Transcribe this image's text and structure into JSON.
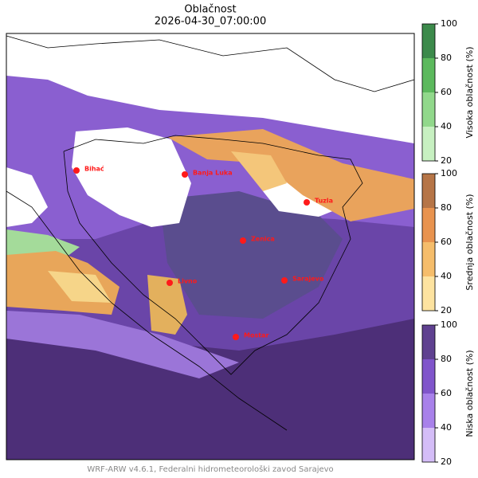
{
  "header": {
    "title": "Oblačnost",
    "subtitle": "2026-04-30_07:00:00"
  },
  "cities": [
    {
      "name": "Bihać"
    },
    {
      "name": "Banja Luka"
    },
    {
      "name": "Tuzla"
    },
    {
      "name": "Zenica"
    },
    {
      "name": "Sarajevo"
    },
    {
      "name": "Livno"
    },
    {
      "name": "Mostar"
    }
  ],
  "colorbars": [
    {
      "label": "Visoka oblačnost (%)",
      "ticks": [
        20,
        40,
        60,
        80,
        100
      ],
      "colors": [
        "#c7f0c1",
        "#91d88b",
        "#5cb95d",
        "#3c8a4b"
      ]
    },
    {
      "label": "Srednja oblačnost (%)",
      "ticks": [
        20,
        40,
        60,
        80,
        100
      ],
      "colors": [
        "#fde3a0",
        "#f5bd6b",
        "#e8934f",
        "#b67547"
      ]
    },
    {
      "label": "Niska oblačnost (%)",
      "ticks": [
        20,
        40,
        60,
        80,
        100
      ],
      "colors": [
        "#d4bdf7",
        "#a881ea",
        "#8055cb",
        "#5f4190"
      ]
    }
  ],
  "footer": "WRF-ARW v4.6.1, Federalni hidrometeorološki zavod Sarajevo"
}
